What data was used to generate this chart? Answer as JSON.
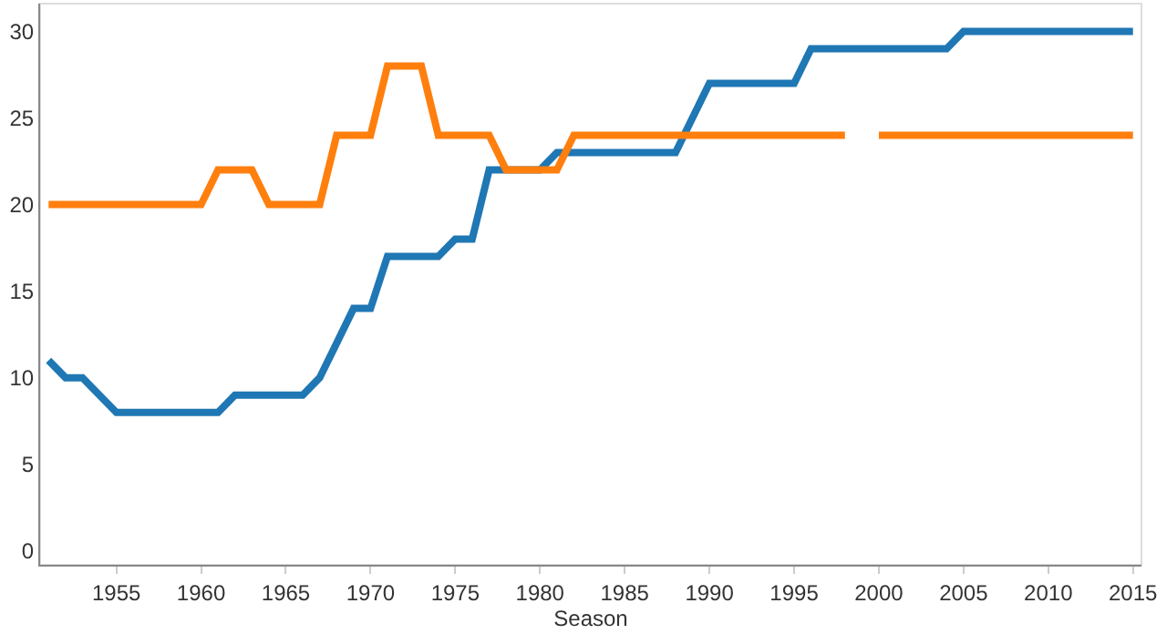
{
  "chart_data": {
    "type": "line",
    "xlabel": "Season",
    "x": [
      1951,
      1952,
      1953,
      1954,
      1955,
      1956,
      1957,
      1958,
      1959,
      1960,
      1961,
      1962,
      1963,
      1964,
      1965,
      1966,
      1967,
      1968,
      1969,
      1970,
      1971,
      1972,
      1973,
      1974,
      1975,
      1976,
      1977,
      1978,
      1979,
      1980,
      1981,
      1982,
      1983,
      1984,
      1985,
      1986,
      1987,
      1988,
      1989,
      1990,
      1991,
      1992,
      1993,
      1994,
      1995,
      1996,
      1997,
      1998,
      1999,
      2000,
      2001,
      2002,
      2003,
      2004,
      2005,
      2006,
      2007,
      2008,
      2009,
      2010,
      2011,
      2012,
      2013,
      2014,
      2015
    ],
    "series": [
      {
        "color": "#1f77b4",
        "values": [
          11,
          10,
          10,
          9,
          8,
          8,
          8,
          8,
          8,
          8,
          8,
          9,
          9,
          9,
          9,
          9,
          10,
          12,
          14,
          14,
          17,
          17,
          17,
          17,
          18,
          18,
          22,
          22,
          22,
          22,
          23,
          23,
          23,
          23,
          23,
          23,
          23,
          23,
          25,
          27,
          27,
          27,
          27,
          27,
          27,
          29,
          29,
          29,
          29,
          29,
          29,
          29,
          29,
          29,
          30,
          30,
          30,
          30,
          30,
          30,
          30,
          30,
          30,
          30,
          30
        ]
      },
      {
        "color": "#ff7f0e",
        "values": [
          20,
          20,
          20,
          20,
          20,
          20,
          20,
          20,
          20,
          20,
          22,
          22,
          22,
          20,
          20,
          20,
          20,
          24,
          24,
          24,
          28,
          28,
          28,
          24,
          24,
          24,
          24,
          22,
          22,
          22,
          22,
          24,
          24,
          24,
          24,
          24,
          24,
          24,
          24,
          24,
          24,
          24,
          24,
          24,
          24,
          24,
          24,
          24,
          null,
          24,
          24,
          24,
          24,
          24,
          24,
          24,
          24,
          24,
          24,
          24,
          24,
          24,
          24,
          24,
          24
        ]
      }
    ],
    "xlim": [
      1950.5,
      2015.5
    ],
    "xticks": [
      1955,
      1960,
      1965,
      1970,
      1975,
      1980,
      1985,
      1990,
      1995,
      2000,
      2005,
      2010,
      2015
    ],
    "ylim": [
      -0.8,
      31.6
    ],
    "yticks": [
      0,
      5,
      10,
      15,
      20,
      25,
      30
    ],
    "line_style": "solid"
  }
}
